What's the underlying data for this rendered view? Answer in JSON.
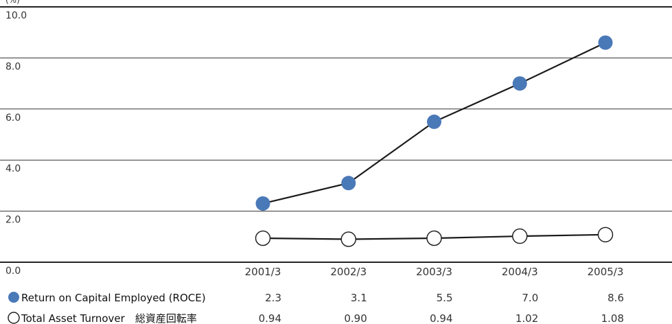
{
  "chart_data": {
    "type": "line",
    "unit_label": "(%)",
    "ylim": [
      0,
      10
    ],
    "yticks": [
      "0.0",
      "2.0",
      "4.0",
      "6.0",
      "8.0",
      "10.0"
    ],
    "grid": true,
    "categories": [
      "2001/3",
      "2002/3",
      "2003/3",
      "2004/3",
      "2005/3"
    ],
    "series": [
      {
        "name": "Return on Capital Employed (ROCE)",
        "values": [
          2.3,
          3.1,
          5.5,
          7.0,
          8.6
        ],
        "labels": [
          "2.3",
          "3.1",
          "5.5",
          "7.0",
          "8.6"
        ],
        "marker": "filled",
        "color": "#4a79b8"
      },
      {
        "name": "Total Asset Turnover　総資産回転率",
        "values": [
          0.94,
          0.9,
          0.94,
          1.02,
          1.08
        ],
        "labels": [
          "0.94",
          "0.90",
          "0.94",
          "1.02",
          "1.08"
        ],
        "marker": "hollow",
        "color": "#ffffff"
      }
    ]
  }
}
